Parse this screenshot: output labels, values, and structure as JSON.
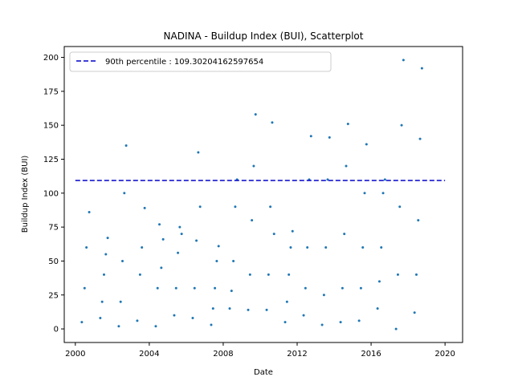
{
  "chart_data": {
    "type": "scatter",
    "title": "NADINA - Buildup Index (BUI), Scatterplot",
    "xlabel": "Date",
    "ylabel": "Buildup Index (BUI)",
    "xlim": [
      1999.4,
      2020.95
    ],
    "ylim": [
      -10,
      208
    ],
    "x_ticks": [
      2000,
      2004,
      2008,
      2012,
      2016,
      2020
    ],
    "y_ticks": [
      0,
      25,
      50,
      75,
      100,
      125,
      150,
      175,
      200
    ],
    "point_color": "#1f77b4",
    "reference_line": {
      "label": "90th percentile : 109.30204162597654",
      "value": 109.30204162597654,
      "x_range": [
        2000,
        2020
      ],
      "color": "#0000cc",
      "style": "dashed"
    },
    "legend_placement": "upper-left",
    "season_series": [
      {
        "year": 2000,
        "x": [
          2000.35,
          2000.5,
          2000.6,
          2000.75
        ],
        "y": [
          5,
          30,
          60,
          86
        ]
      },
      {
        "year": 2001,
        "x": [
          2001.35,
          2001.45,
          2001.55,
          2001.65,
          2001.75
        ],
        "y": [
          8,
          20,
          40,
          55,
          67
        ]
      },
      {
        "year": 2002,
        "x": [
          2002.35,
          2002.45,
          2002.55,
          2002.65,
          2002.75
        ],
        "y": [
          2,
          20,
          50,
          100,
          135
        ]
      },
      {
        "year": 2003,
        "x": [
          2003.35,
          2003.5,
          2003.6,
          2003.75
        ],
        "y": [
          6,
          40,
          60,
          89
        ]
      },
      {
        "year": 2004,
        "x": [
          2004.35,
          2004.45,
          2004.55,
          2004.65,
          2004.75
        ],
        "y": [
          2,
          30,
          77,
          45,
          66
        ]
      },
      {
        "year": 2005,
        "x": [
          2005.35,
          2005.45,
          2005.55,
          2005.65,
          2005.75
        ],
        "y": [
          10,
          30,
          56,
          75,
          70
        ]
      },
      {
        "year": 2006,
        "x": [
          2006.35,
          2006.45,
          2006.55,
          2006.65,
          2006.75
        ],
        "y": [
          8,
          30,
          65,
          130,
          90
        ]
      },
      {
        "year": 2007,
        "x": [
          2007.35,
          2007.45,
          2007.55,
          2007.65,
          2007.75
        ],
        "y": [
          3,
          15,
          30,
          50,
          61
        ]
      },
      {
        "year": 2008,
        "x": [
          2008.35,
          2008.45,
          2008.55,
          2008.65,
          2008.75
        ],
        "y": [
          15,
          28,
          50,
          90,
          110
        ]
      },
      {
        "year": 2009,
        "x": [
          2009.35,
          2009.45,
          2009.55,
          2009.65,
          2009.75
        ],
        "y": [
          14,
          40,
          80,
          120,
          158
        ]
      },
      {
        "year": 2010,
        "x": [
          2010.35,
          2010.45,
          2010.55,
          2010.65,
          2010.75
        ],
        "y": [
          14,
          40,
          90,
          152,
          70
        ]
      },
      {
        "year": 2011,
        "x": [
          2011.35,
          2011.45,
          2011.55,
          2011.65,
          2011.75
        ],
        "y": [
          5,
          20,
          40,
          60,
          72
        ]
      },
      {
        "year": 2012,
        "x": [
          2012.35,
          2012.45,
          2012.55,
          2012.65,
          2012.75
        ],
        "y": [
          10,
          30,
          60,
          110,
          142
        ]
      },
      {
        "year": 2013,
        "x": [
          2013.35,
          2013.45,
          2013.55,
          2013.65,
          2013.75
        ],
        "y": [
          3,
          25,
          60,
          110,
          141
        ]
      },
      {
        "year": 2014,
        "x": [
          2014.35,
          2014.45,
          2014.55,
          2014.65,
          2014.75
        ],
        "y": [
          5,
          30,
          70,
          120,
          151
        ]
      },
      {
        "year": 2015,
        "x": [
          2015.35,
          2015.45,
          2015.55,
          2015.65,
          2015.75
        ],
        "y": [
          6,
          30,
          60,
          100,
          136
        ]
      },
      {
        "year": 2016,
        "x": [
          2016.35,
          2016.45,
          2016.55,
          2016.65,
          2016.75
        ],
        "y": [
          15,
          35,
          60,
          100,
          110
        ]
      },
      {
        "year": 2017,
        "x": [
          2017.35,
          2017.45,
          2017.55,
          2017.65,
          2017.75
        ],
        "y": [
          0,
          40,
          90,
          150,
          198
        ]
      },
      {
        "year": 2018,
        "x": [
          2018.35,
          2018.45,
          2018.55,
          2018.65,
          2018.75
        ],
        "y": [
          12,
          40,
          80,
          140,
          192
        ]
      }
    ]
  }
}
